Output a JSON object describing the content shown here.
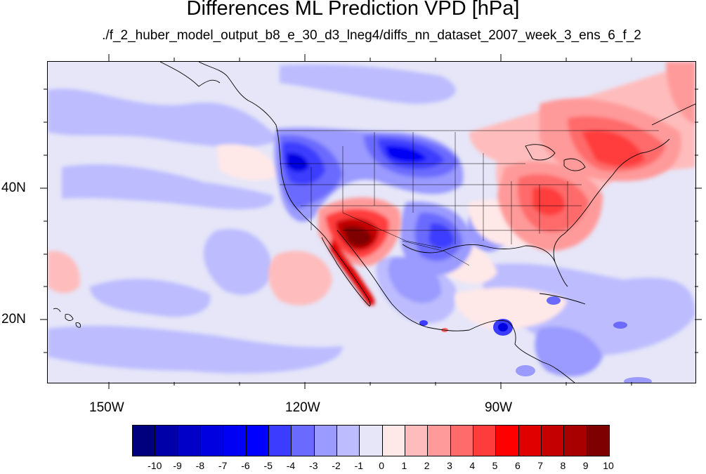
{
  "title": "Differences ML Prediction VPD [hPa]",
  "subtitle": "./f_2_huber_model_output_b8_e_30_d3_lneg4/diffs_nn_dataset_2007_week_3_ens_6_f_2",
  "map": {
    "lon_range": [
      -159.5,
      -60.5
    ],
    "lat_range": [
      11,
      60
    ],
    "lon_ticks": [
      {
        "value": -150,
        "label": "150W"
      },
      {
        "value": -120,
        "label": "120W"
      },
      {
        "value": -90,
        "label": "90W"
      }
    ],
    "lat_ticks": [
      {
        "value": 40,
        "label": "40N"
      },
      {
        "value": 20,
        "label": "20N"
      }
    ]
  },
  "colorbar": {
    "levels": [
      "-10",
      "-9",
      "-8",
      "-7",
      "-6",
      "-5",
      "-4",
      "-3",
      "-2",
      "-1",
      "0",
      "1",
      "2",
      "3",
      "4",
      "5",
      "6",
      "7",
      "8",
      "9",
      "10"
    ],
    "colors": [
      "#00007f",
      "#0000a8",
      "#0000c8",
      "#0000e0",
      "#0000f5",
      "#0000ff",
      "#3c3cff",
      "#6a6aff",
      "#9a9aff",
      "#bcbcff",
      "#e6e6f8",
      "#ffe8e8",
      "#ffbcbc",
      "#ff9a9a",
      "#ff6a6a",
      "#ff3c3c",
      "#ff0000",
      "#e00000",
      "#c40000",
      "#a80000",
      "#7f0000"
    ]
  }
}
